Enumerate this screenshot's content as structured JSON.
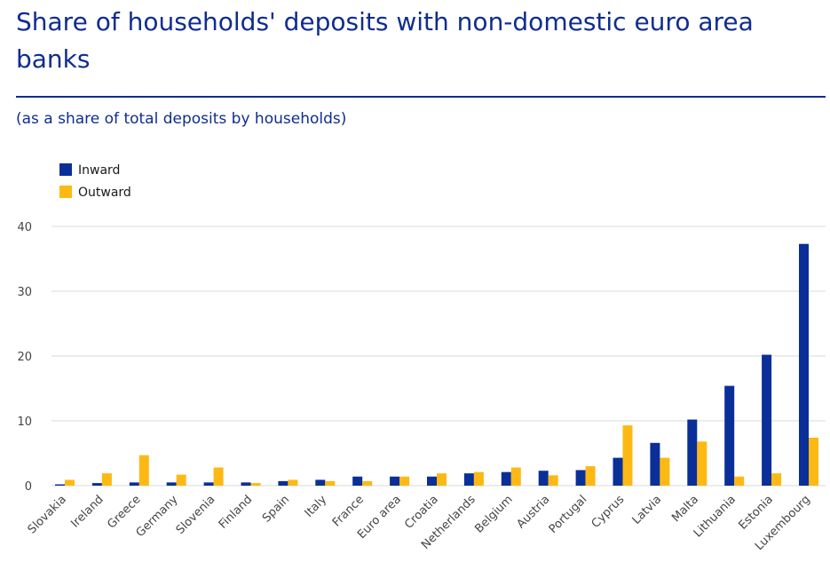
{
  "header": {
    "title": "Share of households' deposits with non-domestic euro area banks",
    "subtitle": "(as a share of total deposits by households)"
  },
  "colors": {
    "inward": "#0a2f98",
    "outward": "#fdb913",
    "grid": "#d9d9d9",
    "text": "#444444"
  },
  "chart_data": {
    "type": "bar",
    "categories": [
      "Slovakia",
      "Ireland",
      "Greece",
      "Germany",
      "Slovenia",
      "Finland",
      "Spain",
      "Italy",
      "France",
      "Euro area",
      "Croatia",
      "Netherlands",
      "Belgium",
      "Austria",
      "Portugal",
      "Cyprus",
      "Latvia",
      "Malta",
      "Lithuania",
      "Estonia",
      "Luxembourg"
    ],
    "series": [
      {
        "name": "Inward",
        "values": [
          0.2,
          0.4,
          0.5,
          0.5,
          0.5,
          0.5,
          0.7,
          0.9,
          1.4,
          1.4,
          1.4,
          1.9,
          2.1,
          2.3,
          2.4,
          4.3,
          6.6,
          10.2,
          15.4,
          20.2,
          37.3
        ]
      },
      {
        "name": "Outward",
        "values": [
          0.9,
          1.9,
          4.7,
          1.7,
          2.8,
          0.4,
          0.9,
          0.7,
          0.7,
          1.4,
          1.9,
          2.1,
          2.8,
          1.6,
          3.0,
          9.3,
          4.3,
          6.8,
          1.4,
          1.9,
          7.4
        ]
      }
    ],
    "yticks": [
      0,
      10,
      20,
      30,
      40
    ],
    "ylim": [
      0,
      42
    ],
    "grid": true,
    "legend_position": "top-left"
  }
}
